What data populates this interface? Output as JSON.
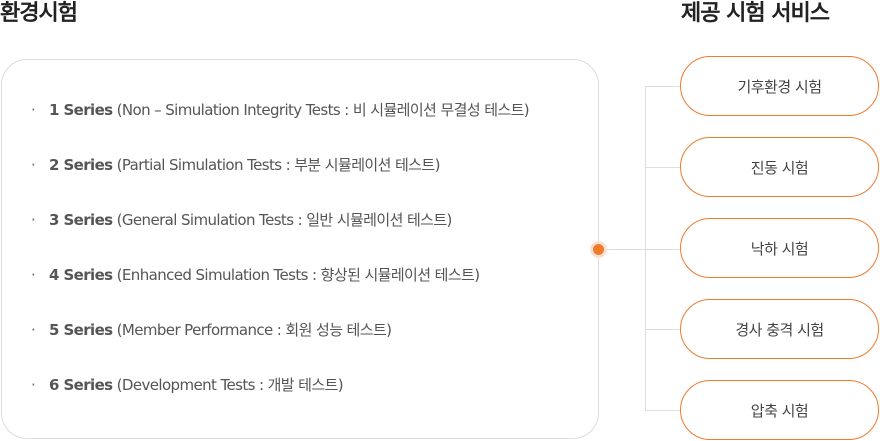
{
  "left_title": "환경시험",
  "right_title": "제공 시험 서비스",
  "series": [
    {
      "name": "1 Series",
      "desc": "(Non – Simulation Integrity Tests : 비 시뮬레이션 무결성 테스트)"
    },
    {
      "name": "2 Series",
      "desc": "(Partial Simulation Tests : 부분 시뮬레이션 테스트)"
    },
    {
      "name": "3 Series",
      "desc": "(General Simulation Tests : 일반 시뮬레이션 테스트)"
    },
    {
      "name": "4 Series",
      "desc": "(Enhanced Simulation Tests : 향상된 시뮬레이션 테스트)"
    },
    {
      "name": "5 Series",
      "desc": "(Member Performance : 회원 성능 테스트)"
    },
    {
      "name": "6 Series",
      "desc": "(Development Tests : 개발 테스트)"
    }
  ],
  "services": [
    "기후환경 시험",
    "진동 시험",
    "낙하 시험",
    "경사 충격 시험",
    "압축 시험"
  ],
  "colors": {
    "accent": "#ef7b2e",
    "line": "#dddddd"
  }
}
